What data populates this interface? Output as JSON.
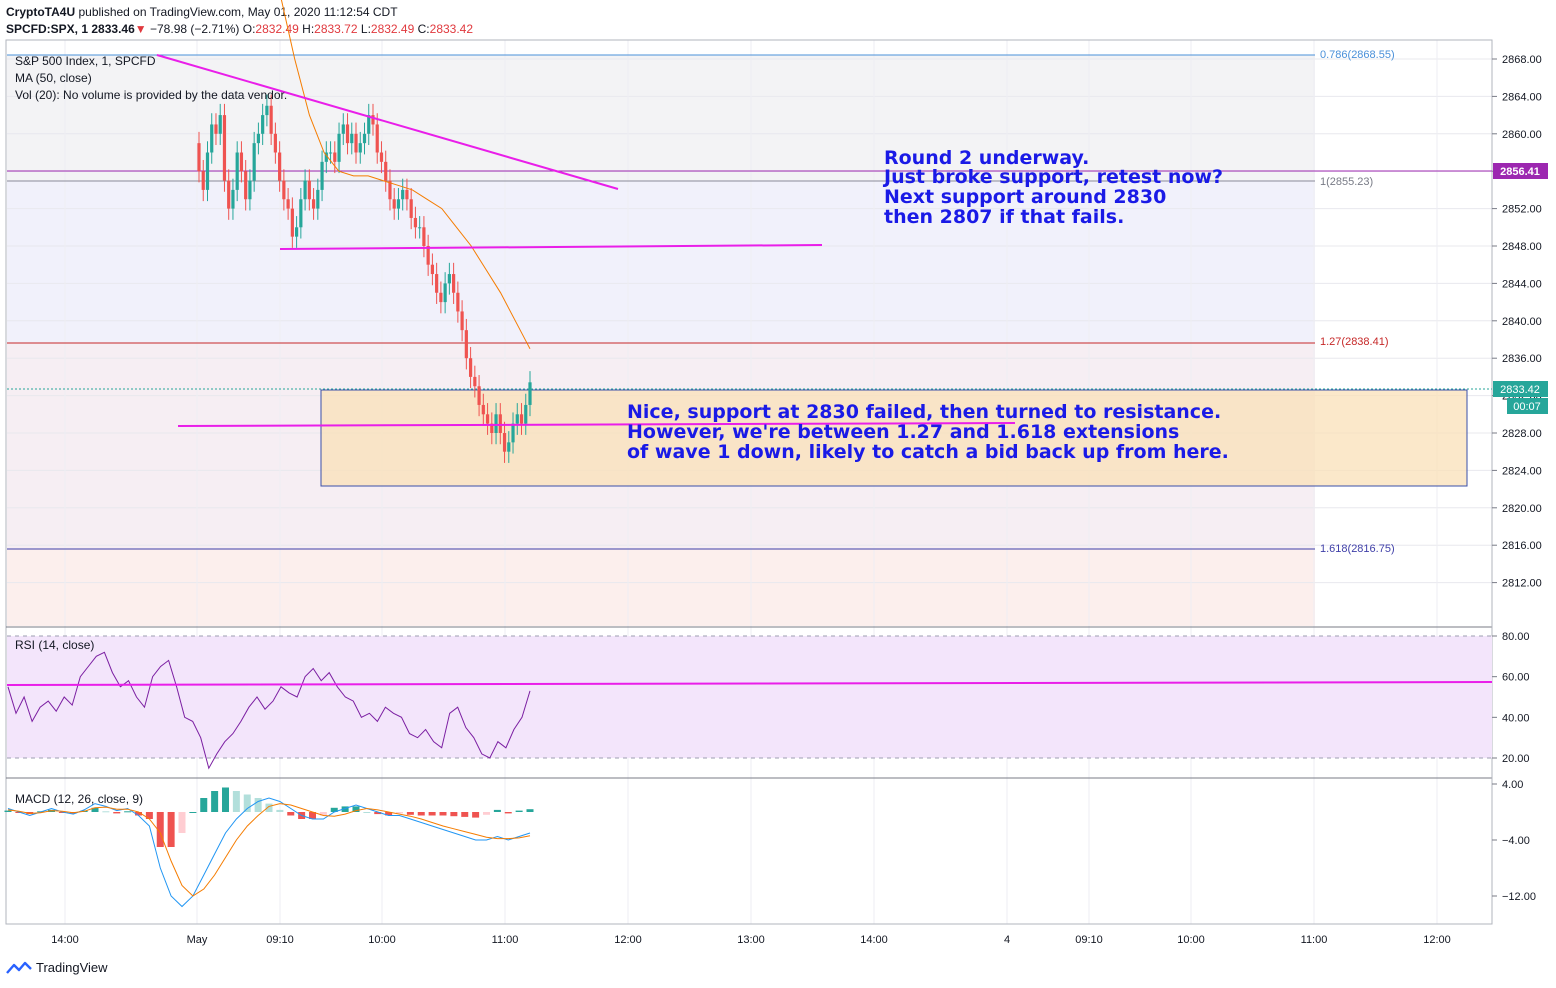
{
  "header": {
    "author": "CryptoTA4U",
    "published_text": "published on TradingView.com, May 01, 2020 11:12:54 CDT",
    "symbol": "SPCFD:SPX, 1",
    "last": "2833.46",
    "change_arrow": "▼",
    "change": "−78.98 (−2.71%)",
    "o_label": "O:",
    "o": "2832.49",
    "h_label": "H:",
    "h": "2833.72",
    "l_label": "L:",
    "l": "2832.49",
    "c_label": "C:",
    "c": "2833.42"
  },
  "legend": {
    "title": "S&P 500 Index, 1, SPCFD",
    "ma": "MA (50, close)",
    "vol": "Vol (20): No volume is provided by the data vendor."
  },
  "fib_labels": {
    "f0786": "0.786(2868.55)",
    "f1": "1(2855.23)",
    "f127": "1.27(2838.41)",
    "f1618": "1.618(2816.75)"
  },
  "price_tags": {
    "upper": "2856.41",
    "current": "2833.42",
    "countdown": "00:07"
  },
  "annotations": {
    "top": [
      "Round 2 underway.",
      "Just broke support, retest now?",
      "Next support around 2830",
      "then 2807 if that fails."
    ],
    "box": [
      "Nice, support at 2830 failed, then turned to resistance.",
      "However, we're between 1.27 and 1.618 extensions",
      "of wave 1 down, likely to catch a bid back up from here."
    ]
  },
  "rsi_label": "RSI (14, close)",
  "macd_label": "MACD (12, 26, close, 9)",
  "footer": {
    "brand": "TradingView"
  },
  "colors": {
    "up": "#26a69a",
    "down": "#ef5350",
    "ma": "#f57c00",
    "trendline": "#e91ee9",
    "annotation": "#1a1ae6",
    "rsi": "#7b1fa2",
    "macd": "#2196f3",
    "signal": "#f57c00"
  },
  "chart_data": [
    {
      "type": "candlestick",
      "title": "S&P 500 Index, 1, SPCFD",
      "ylim": [
        2808,
        2870
      ],
      "yticks": [
        "2868.00",
        "2864.00",
        "2860.00",
        "2856.00",
        "2852.00",
        "2848.00",
        "2844.00",
        "2840.00",
        "2836.00",
        "2832.00",
        "2828.00",
        "2824.00",
        "2820.00",
        "2816.00",
        "2812.00"
      ],
      "xticks": [
        "14:00",
        "May",
        "09:10",
        "10:00",
        "11:00",
        "12:00",
        "13:00",
        "14:00",
        "4",
        "09:10",
        "10:00",
        "11:00",
        "12:00"
      ],
      "close_series": [
        2856,
        2854,
        2858,
        2861,
        2860,
        2862,
        2855,
        2852,
        2854,
        2858,
        2856,
        2853,
        2855,
        2859,
        2860,
        2862,
        2863,
        2860,
        2858,
        2855,
        2853,
        2852,
        2849,
        2850,
        2853,
        2855,
        2853,
        2852,
        2854,
        2857,
        2858,
        2858,
        2857,
        2860,
        2861,
        2859,
        2860,
        2858,
        2859,
        2860,
        2862,
        2861,
        2858,
        2857,
        2855,
        2853,
        2852,
        2853,
        2854,
        2853,
        2851,
        2850,
        2850,
        2848,
        2846,
        2845,
        2843,
        2842,
        2844,
        2845,
        2843,
        2841,
        2839,
        2836,
        2834,
        2833,
        2831,
        2830,
        2829,
        2828,
        2830,
        2828,
        2826,
        2827,
        2829,
        2830,
        2829,
        2831,
        2833.42
      ],
      "ma_series": [
        2875,
        2868,
        2862,
        2858,
        2856,
        2855.5,
        2855.5,
        2855,
        2854.5,
        2854,
        2853,
        2852,
        2850,
        2848,
        2845.5,
        2843,
        2840,
        2837
      ],
      "fib_levels": [
        {
          "label": "0.786(2868.55)",
          "value": 2868.55
        },
        {
          "label": "1(2855.23)",
          "value": 2855.23
        },
        {
          "label": "1.27(2838.41)",
          "value": 2838.41
        },
        {
          "label": "1.618(2816.75)",
          "value": 2816.75
        }
      ],
      "horizontal_levels": [
        2856.41,
        2848.2,
        2829.8
      ],
      "current_price": 2833.42
    },
    {
      "type": "line",
      "title": "RSI (14, close)",
      "ylim": [
        10,
        82
      ],
      "yticks": [
        "80.00",
        "60.00",
        "40.00",
        "20.00"
      ],
      "series": [
        {
          "values": [
            55,
            42,
            50,
            38,
            45,
            48,
            43,
            50,
            46,
            60,
            65,
            70,
            72,
            62,
            55,
            58,
            50,
            45,
            60,
            65,
            68,
            55,
            40,
            38,
            30,
            15,
            22,
            28,
            32,
            38,
            45,
            50,
            44,
            48,
            55,
            52,
            50,
            60,
            64,
            58,
            62,
            55,
            50,
            48,
            40,
            42,
            38,
            45,
            42,
            40,
            32,
            30,
            34,
            28,
            25,
            42,
            45,
            35,
            30,
            22,
            20,
            28,
            25,
            34,
            40,
            53
          ]
        }
      ],
      "horizontal_levels": [
        55.5
      ]
    },
    {
      "type": "line",
      "title": "MACD (12, 26, close, 9)",
      "ylim": [
        -14,
        4.5
      ],
      "yticks": [
        "4.00",
        "−4.00",
        "−12.00"
      ],
      "series": [
        {
          "values": [
            0.5,
            0,
            -0.5,
            0,
            0.5,
            0,
            -0.3,
            0.3,
            1.2,
            0.8,
            0.2,
            0.5,
            -0.5,
            -2,
            -8,
            -12,
            -13.5,
            -12,
            -9,
            -6,
            -3,
            -1,
            0.5,
            1.5,
            2,
            1.5,
            0.5,
            -0.5,
            -1,
            -1,
            0,
            0.5,
            1,
            0.5,
            0,
            -0.5,
            -0.5,
            -1,
            -1.5,
            -2,
            -2.5,
            -3,
            -3.5,
            -4,
            -4,
            -3.5,
            -4,
            -3.5,
            -3
          ]
        },
        {
          "values": [
            0.3,
            0.1,
            -0.2,
            -0.1,
            0.2,
            0.1,
            -0.1,
            0.1,
            0.6,
            0.7,
            0.4,
            0.4,
            0,
            -1,
            -3,
            -7,
            -10.5,
            -12,
            -11,
            -9,
            -6.5,
            -4,
            -2,
            -0.5,
            0.8,
            1.2,
            1,
            0.5,
            0,
            -0.5,
            -0.6,
            -0.3,
            0.2,
            0.5,
            0.3,
            0,
            -0.3,
            -0.6,
            -1,
            -1.5,
            -2,
            -2.4,
            -2.8,
            -3.2,
            -3.6,
            -3.8,
            -3.8,
            -3.7,
            -3.4
          ]
        }
      ]
    }
  ]
}
